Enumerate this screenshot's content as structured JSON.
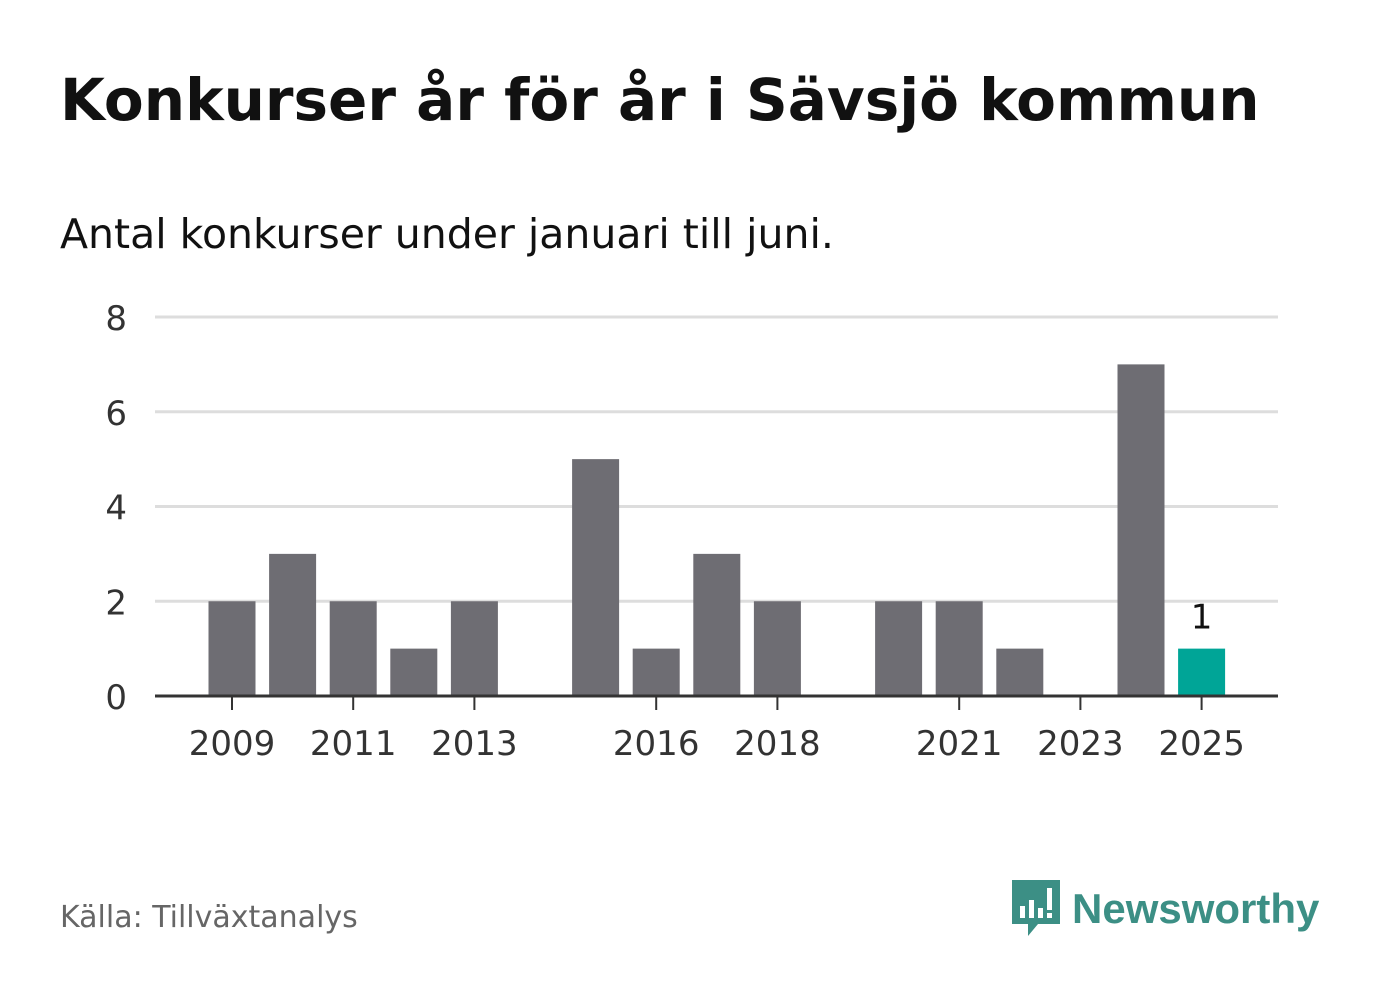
{
  "title": "Konkurser år för år i Sävsjö kommun",
  "subtitle": "Antal konkurser under januari till juni.",
  "source": "Källa: Tillväxtanalys",
  "brand": {
    "name": "Newsworthy",
    "icon": "newsworthy-logo-icon",
    "color": "#3c8f85"
  },
  "chart_data": {
    "type": "bar",
    "title": "Konkurser år för år i Sävsjö kommun",
    "subtitle": "Antal konkurser under januari till juni.",
    "xlabel": "",
    "ylabel": "",
    "ylim": [
      0,
      8
    ],
    "yticks": [
      0,
      2,
      4,
      6,
      8
    ],
    "xticks": [
      2009,
      2011,
      2013,
      2016,
      2018,
      2021,
      2023,
      2025
    ],
    "grid": true,
    "categories": [
      2009,
      2010,
      2011,
      2012,
      2013,
      2014,
      2015,
      2016,
      2017,
      2018,
      2019,
      2020,
      2021,
      2022,
      2023,
      2024,
      2025
    ],
    "values": [
      2,
      3,
      2,
      1,
      2,
      0,
      5,
      1,
      3,
      2,
      0,
      2,
      2,
      1,
      0,
      7,
      1
    ],
    "colors": {
      "default": "#6e6d73",
      "highlight": "#00a597",
      "grid": "#dddddd",
      "axis": "#333333"
    },
    "highlight_index": 16,
    "data_labels": [
      {
        "category": 2025,
        "text": "1"
      }
    ]
  }
}
